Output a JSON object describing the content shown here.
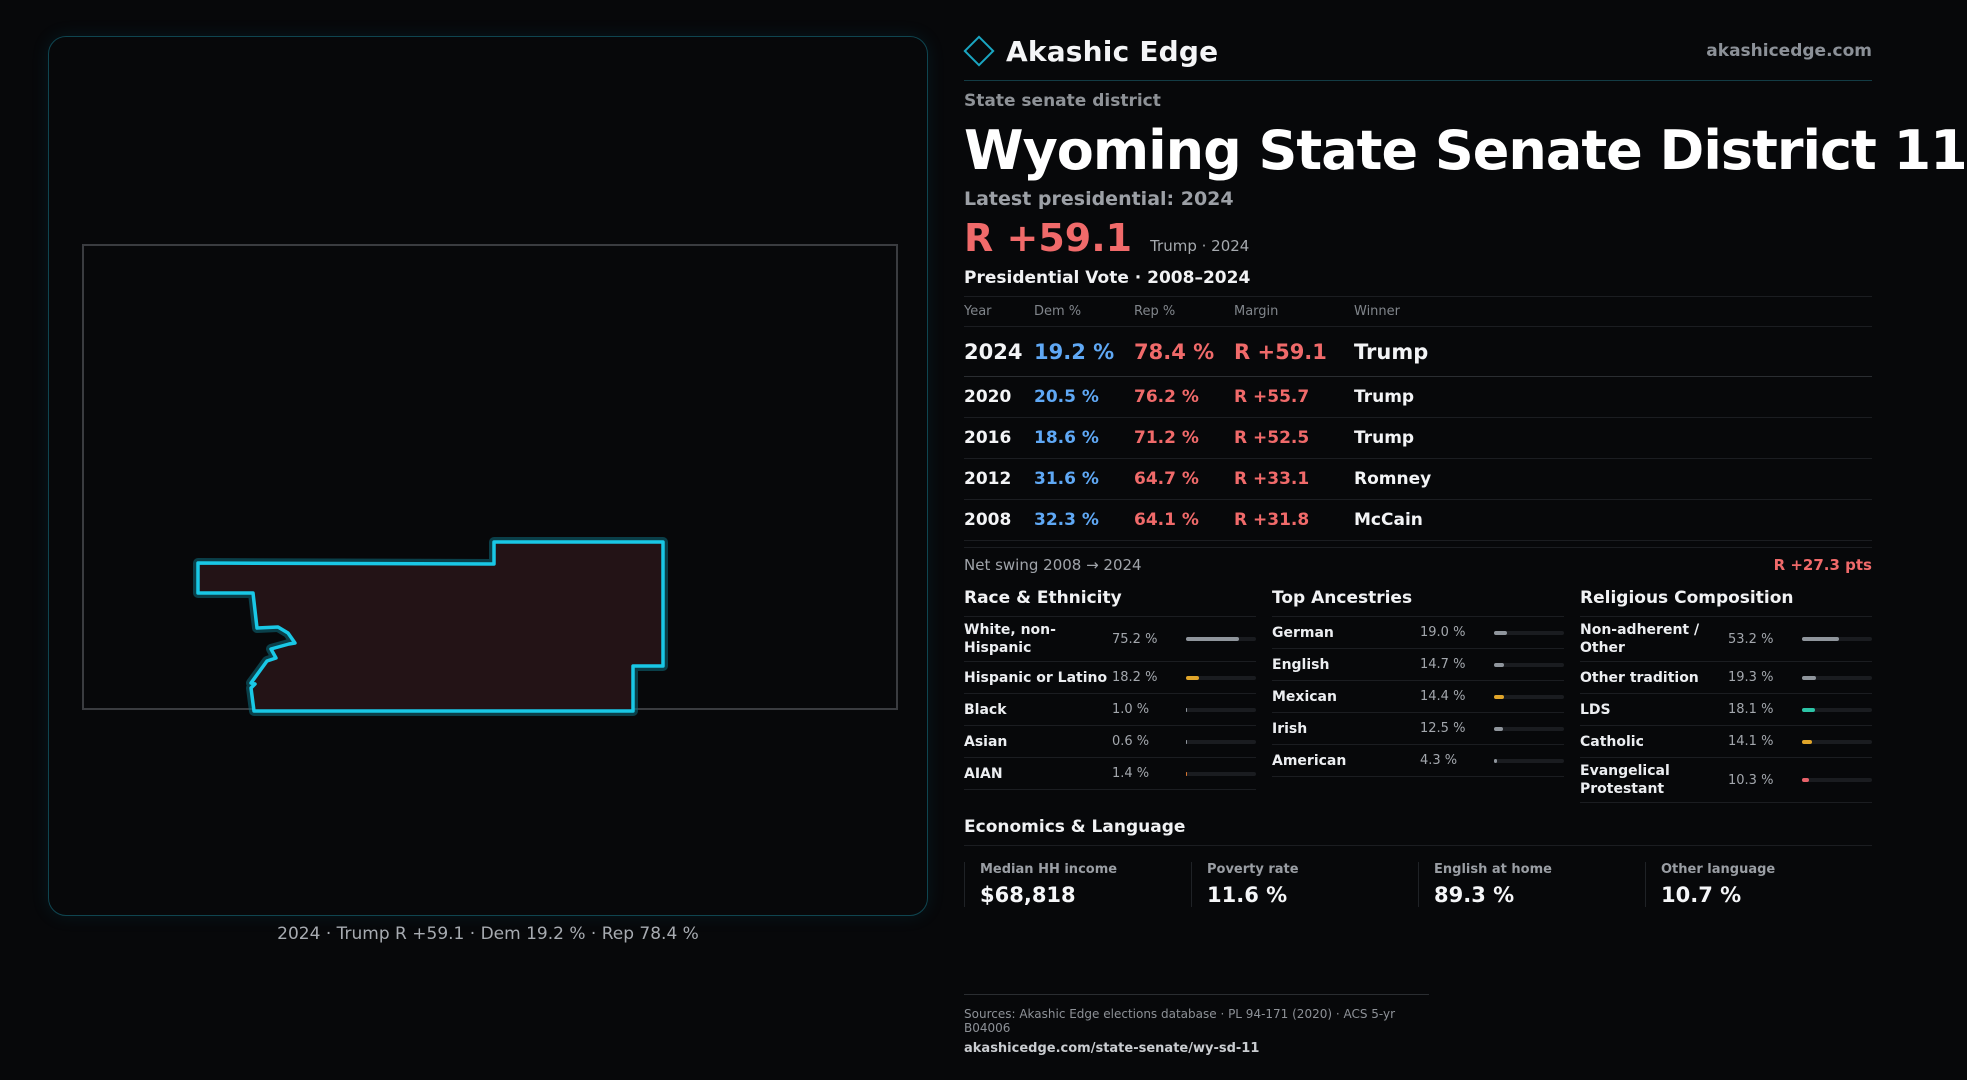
{
  "brand": {
    "name": "Akashic Edge",
    "url": "akashicedge.com"
  },
  "header": {
    "kicker": "State senate district",
    "title": "Wyoming State Senate District 11",
    "latest_label": "Latest presidential: 2024",
    "margin": "R +59.1",
    "margin_sub": "Trump · 2024"
  },
  "map": {
    "caption": "2024 · Trump R +59.1 · Dem 19.2 % · Rep 78.4 %",
    "outline_color": "#19c8e6"
  },
  "votes": {
    "title": "Presidential Vote · 2008–2024",
    "columns": {
      "year": "Year",
      "dem": "Dem %",
      "rep": "Rep %",
      "margin": "Margin",
      "winner": "Winner"
    },
    "rows": [
      {
        "year": "2024",
        "dem": "19.2 %",
        "rep": "78.4 %",
        "margin": "R +59.1",
        "winner": "Trump"
      },
      {
        "year": "2020",
        "dem": "20.5 %",
        "rep": "76.2 %",
        "margin": "R +55.7",
        "winner": "Trump"
      },
      {
        "year": "2016",
        "dem": "18.6 %",
        "rep": "71.2 %",
        "margin": "R +52.5",
        "winner": "Trump"
      },
      {
        "year": "2012",
        "dem": "31.6 %",
        "rep": "64.7 %",
        "margin": "R +33.1",
        "winner": "Romney"
      },
      {
        "year": "2008",
        "dem": "32.3 %",
        "rep": "64.1 %",
        "margin": "R +31.8",
        "winner": "McCain"
      }
    ],
    "swing_label": "Net swing 2008 → 2024",
    "swing_value": "R +27.3 pts"
  },
  "race": {
    "title": "Race & Ethnicity",
    "items": [
      {
        "label": "White, non-Hispanic",
        "value": "75.2 %",
        "share": 0.752,
        "color": "#8f959c"
      },
      {
        "label": "Hispanic or Latino",
        "value": "18.2 %",
        "share": 0.182,
        "color": "#e0a52a"
      },
      {
        "label": "Black",
        "value": "1.0 %",
        "share": 0.01,
        "color": "#8f959c"
      },
      {
        "label": "Asian",
        "value": "0.6 %",
        "share": 0.006,
        "color": "#8f959c"
      },
      {
        "label": "AIAN",
        "value": "1.4 %",
        "share": 0.014,
        "color": "#d8752f"
      }
    ]
  },
  "ancestry": {
    "title": "Top Ancestries",
    "items": [
      {
        "label": "German",
        "value": "19.0 %",
        "share": 0.19,
        "color": "#8f959c"
      },
      {
        "label": "English",
        "value": "14.7 %",
        "share": 0.147,
        "color": "#8f959c"
      },
      {
        "label": "Mexican",
        "value": "14.4 %",
        "share": 0.144,
        "color": "#e0a52a"
      },
      {
        "label": "Irish",
        "value": "12.5 %",
        "share": 0.125,
        "color": "#8f959c"
      },
      {
        "label": "American",
        "value": "4.3 %",
        "share": 0.043,
        "color": "#8f959c"
      }
    ]
  },
  "religion": {
    "title": "Religious Composition",
    "items": [
      {
        "label": "Non-adherent / Other",
        "value": "53.2 %",
        "share": 0.532,
        "color": "#8f959c"
      },
      {
        "label": "Other tradition",
        "value": "19.3 %",
        "share": 0.193,
        "color": "#8f959c"
      },
      {
        "label": "LDS",
        "value": "18.1 %",
        "share": 0.181,
        "color": "#2cc4a6"
      },
      {
        "label": "Catholic",
        "value": "14.1 %",
        "share": 0.141,
        "color": "#e0a52a"
      },
      {
        "label": "Evangelical Protestant",
        "value": "10.3 %",
        "share": 0.103,
        "color": "#e8626a"
      }
    ]
  },
  "economics": {
    "title": "Economics & Language",
    "cells": [
      {
        "label": "Median HH income",
        "value": "$68,818"
      },
      {
        "label": "Poverty rate",
        "value": "11.6 %"
      },
      {
        "label": "English at home",
        "value": "89.3 %"
      },
      {
        "label": "Other language",
        "value": "10.7 %"
      }
    ]
  },
  "footer": {
    "sources": "Sources: Akashic Edge elections database · PL 94-171 (2020) · ACS 5-yr B04006",
    "url": "akashicedge.com/state-senate/wy-sd-11"
  }
}
